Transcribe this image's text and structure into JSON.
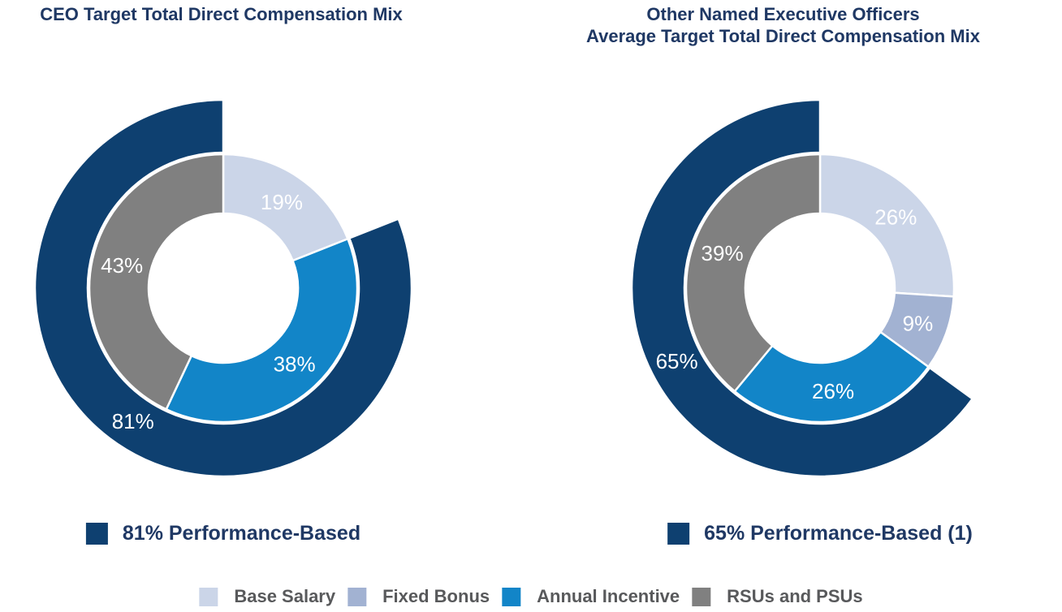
{
  "figure": {
    "units": "%",
    "slice_label_color": "#FFFFFF"
  },
  "legend": {
    "items": [
      {
        "label": "Base Salary",
        "color": "#CBD5E8"
      },
      {
        "label": "Fixed Bonus",
        "color": "#A2B2D2"
      },
      {
        "label": "Annual Incentive",
        "color": "#1285C8"
      },
      {
        "label": "RSUs and PSUs",
        "color": "#808080"
      }
    ]
  },
  "chart_data": [
    {
      "type": "pie",
      "variant": "donut-with-outer-arc",
      "title": "CEO Target Total Direct Compensation Mix",
      "title_lines": [
        "CEO Target Total Direct Compensation Mix"
      ],
      "segments": [
        {
          "label": "Base Salary",
          "value": 19,
          "display": "19%",
          "color": "#CBD5E8"
        },
        {
          "label": "Annual Incentive",
          "value": 38,
          "display": "38%",
          "color": "#1285C8"
        },
        {
          "label": "RSUs and PSUs",
          "value": 43,
          "display": "43%",
          "color": "#808080"
        }
      ],
      "outer_ring": {
        "label": "Performance-Based",
        "value": 81,
        "display": "81%",
        "start_pct": 19,
        "color": "#0E4070"
      },
      "callout": {
        "label": "81% Performance-Based",
        "color": "#0E4070"
      }
    },
    {
      "type": "pie",
      "variant": "donut-with-outer-arc",
      "title": "Other Named Executive Officers Average Target Total Direct Compensation Mix",
      "title_lines": [
        "Other Named Executive Officers",
        "Average Target Total Direct Compensation Mix"
      ],
      "segments": [
        {
          "label": "Base Salary",
          "value": 26,
          "display": "26%",
          "color": "#CBD5E8"
        },
        {
          "label": "Fixed Bonus",
          "value": 9,
          "display": "9%",
          "color": "#A2B2D2"
        },
        {
          "label": "Annual Incentive",
          "value": 26,
          "display": "26%",
          "color": "#1285C8"
        },
        {
          "label": "RSUs and PSUs",
          "value": 39,
          "display": "39%",
          "color": "#808080"
        }
      ],
      "outer_ring": {
        "label": "Performance-Based",
        "value": 65,
        "display": "65%",
        "start_pct": 35,
        "color": "#0E4070"
      },
      "callout": {
        "label": "65% Performance-Based (1)",
        "color": "#0E4070"
      }
    }
  ]
}
